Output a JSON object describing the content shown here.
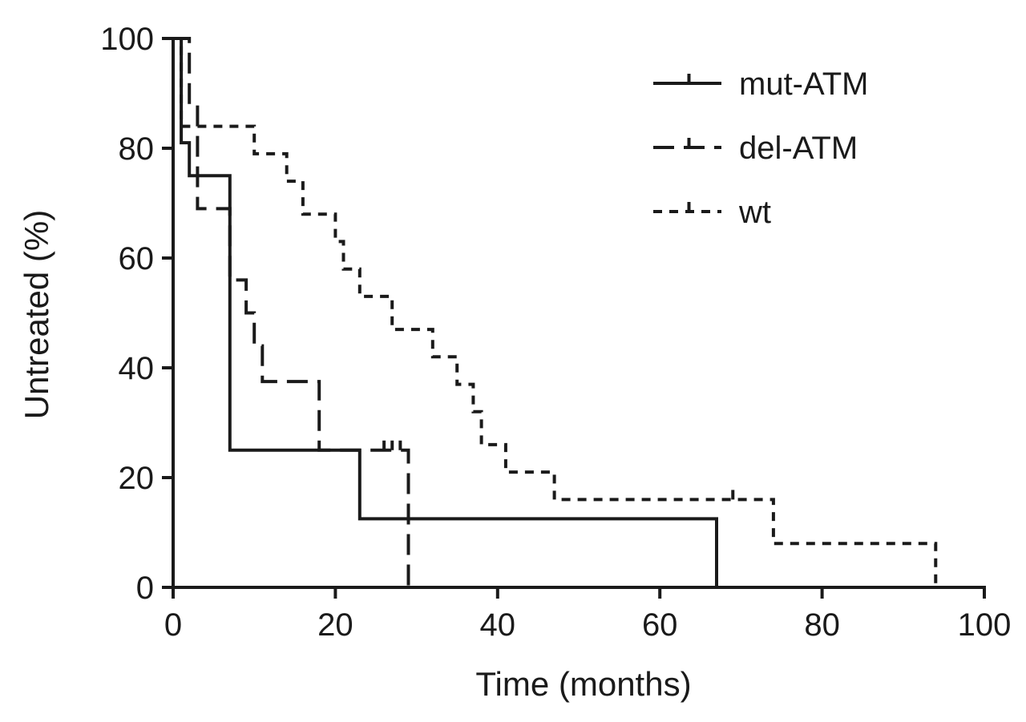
{
  "chart_data": {
    "type": "line",
    "subtype": "kaplan-meier step plot",
    "title": "",
    "xlabel": "Time (months)",
    "ylabel": "Untreated (%)",
    "xlim": [
      0,
      100
    ],
    "ylim": [
      0,
      100
    ],
    "xticks": [
      "0",
      "20",
      "40",
      "60",
      "80",
      "100"
    ],
    "yticks": [
      "0",
      "20",
      "40",
      "60",
      "80",
      "100"
    ],
    "grid": false,
    "legend_position": "top-right",
    "series": [
      {
        "name": "mut-ATM",
        "style": "solid",
        "steps": [
          [
            0,
            100
          ],
          [
            1,
            100
          ],
          [
            1,
            81
          ],
          [
            2,
            81
          ],
          [
            2,
            75
          ],
          [
            7,
            75
          ],
          [
            7,
            25
          ],
          [
            23,
            25
          ],
          [
            23,
            12.5
          ],
          [
            67,
            12.5
          ],
          [
            67,
            0
          ]
        ],
        "censors": []
      },
      {
        "name": "del-ATM",
        "style": "dashed",
        "steps": [
          [
            0,
            100
          ],
          [
            2,
            100
          ],
          [
            2,
            87.5
          ],
          [
            3,
            87.5
          ],
          [
            3,
            69
          ],
          [
            7,
            69
          ],
          [
            7,
            56
          ],
          [
            9,
            56
          ],
          [
            9,
            50
          ],
          [
            10,
            50
          ],
          [
            10,
            44
          ],
          [
            11,
            44
          ],
          [
            11,
            37.5
          ],
          [
            18,
            37.5
          ],
          [
            18,
            25
          ],
          [
            29,
            25
          ],
          [
            29,
            0
          ]
        ],
        "censors": [
          [
            26,
            25
          ],
          [
            27,
            25
          ],
          [
            28,
            25
          ]
        ]
      },
      {
        "name": "wt",
        "style": "dotted",
        "steps": [
          [
            0,
            100
          ],
          [
            1,
            100
          ],
          [
            1,
            84
          ],
          [
            10,
            84
          ],
          [
            10,
            79
          ],
          [
            14,
            79
          ],
          [
            14,
            74
          ],
          [
            16,
            74
          ],
          [
            16,
            68
          ],
          [
            20,
            68
          ],
          [
            20,
            63
          ],
          [
            21,
            63
          ],
          [
            21,
            58
          ],
          [
            23,
            58
          ],
          [
            23,
            53
          ],
          [
            27,
            53
          ],
          [
            27,
            47
          ],
          [
            32,
            47
          ],
          [
            32,
            42
          ],
          [
            35,
            42
          ],
          [
            35,
            37
          ],
          [
            37,
            37
          ],
          [
            37,
            32
          ],
          [
            38,
            32
          ],
          [
            38,
            26
          ],
          [
            41,
            26
          ],
          [
            41,
            21
          ],
          [
            47,
            21
          ],
          [
            47,
            16
          ],
          [
            74,
            16
          ],
          [
            74,
            8
          ],
          [
            94,
            8
          ],
          [
            94,
            0
          ]
        ],
        "censors": [
          [
            69,
            16
          ]
        ]
      }
    ]
  }
}
